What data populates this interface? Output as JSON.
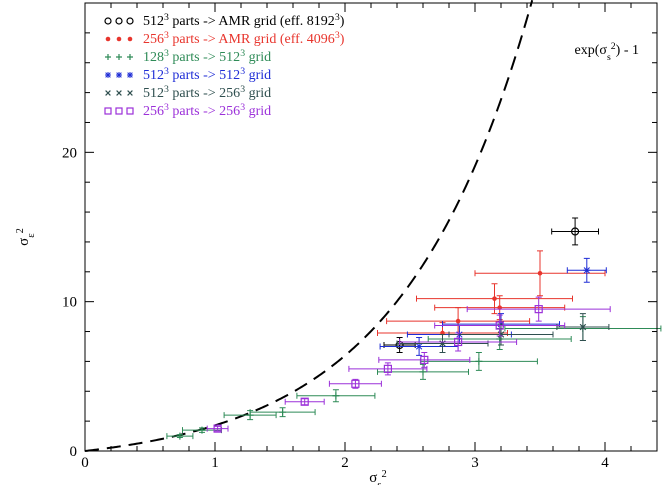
{
  "chart_data": {
    "type": "scatter",
    "title": "",
    "xlabel": "σ_s^2",
    "ylabel": "σ_ε^2",
    "xlim": [
      0,
      4.4
    ],
    "ylim": [
      0,
      30
    ],
    "x_ticks": [
      0,
      1,
      2,
      3,
      4
    ],
    "y_ticks": [
      0,
      10,
      20
    ],
    "grid": false,
    "legend_position": "top-left",
    "curve": {
      "label": "exp(σ_s^2) - 1",
      "style": "dashed",
      "color": "#000000"
    },
    "series": [
      {
        "name": "512^3 parts -> AMR grid (eff. 8192^3)",
        "marker": "circle",
        "color": "#000000",
        "points": [
          {
            "x": 2.42,
            "y": 7.1,
            "xerr": 0.12,
            "yerr": 0.5
          },
          {
            "x": 3.77,
            "y": 14.7,
            "xerr": 0.18,
            "yerr": 0.9
          }
        ]
      },
      {
        "name": "256^3 parts -> AMR grid (eff. 4096^3)",
        "marker": "dot",
        "color": "#e8352d",
        "points": [
          {
            "x": 2.75,
            "y": 7.9,
            "xerr": 0.5,
            "yerr": 0.7
          },
          {
            "x": 2.87,
            "y": 8.7,
            "xerr": 0.55,
            "yerr": 0.9
          },
          {
            "x": 3.15,
            "y": 10.2,
            "xerr": 0.6,
            "yerr": 1.0
          },
          {
            "x": 3.19,
            "y": 9.6,
            "xerr": 0.5,
            "yerr": 0.8
          },
          {
            "x": 3.5,
            "y": 11.9,
            "xerr": 0.5,
            "yerr": 1.5
          }
        ]
      },
      {
        "name": "128^3 parts -> 512^3 grid",
        "marker": "plus",
        "color": "#2e8b57",
        "points": [
          {
            "x": 0.73,
            "y": 1.0,
            "xerr": 0.1,
            "yerr": 0.1
          },
          {
            "x": 0.9,
            "y": 1.4,
            "xerr": 0.15,
            "yerr": 0.15
          },
          {
            "x": 1.27,
            "y": 2.4,
            "xerr": 0.2,
            "yerr": 0.3
          },
          {
            "x": 1.52,
            "y": 2.6,
            "xerr": 0.25,
            "yerr": 0.3
          },
          {
            "x": 1.93,
            "y": 3.7,
            "xerr": 0.3,
            "yerr": 0.4
          },
          {
            "x": 2.6,
            "y": 5.3,
            "xerr": 0.35,
            "yerr": 0.5
          },
          {
            "x": 3.03,
            "y": 6.0,
            "xerr": 0.45,
            "yerr": 0.6
          },
          {
            "x": 3.19,
            "y": 7.5,
            "xerr": 0.55,
            "yerr": 0.7
          },
          {
            "x": 3.83,
            "y": 8.2,
            "xerr": 0.6,
            "yerr": 0.8
          }
        ]
      },
      {
        "name": "512^3 parts -> 512^3 grid",
        "marker": "asterisk",
        "color": "#1f2dd6",
        "points": [
          {
            "x": 2.57,
            "y": 7.0,
            "xerr": 0.3,
            "yerr": 0.6
          },
          {
            "x": 2.88,
            "y": 7.8,
            "xerr": 0.4,
            "yerr": 0.6
          },
          {
            "x": 3.2,
            "y": 8.5,
            "xerr": 0.45,
            "yerr": 0.7
          },
          {
            "x": 3.86,
            "y": 12.1,
            "xerr": 0.15,
            "yerr": 0.8
          }
        ]
      },
      {
        "name": "512^3 parts -> 256^3 grid",
        "marker": "cross",
        "color": "#2f4f4f",
        "points": [
          {
            "x": 2.75,
            "y": 7.2,
            "xerr": 0.35,
            "yerr": 0.6
          },
          {
            "x": 3.2,
            "y": 7.8,
            "xerr": 0.4,
            "yerr": 0.7
          },
          {
            "x": 3.83,
            "y": 8.3,
            "xerr": 0.2,
            "yerr": 0.9
          }
        ]
      },
      {
        "name": "256^3 parts -> 256^3 grid",
        "marker": "square",
        "color": "#9b30d9",
        "points": [
          {
            "x": 1.02,
            "y": 1.5,
            "xerr": 0.08,
            "yerr": 0.15
          },
          {
            "x": 1.69,
            "y": 3.3,
            "xerr": 0.15,
            "yerr": 0.2
          },
          {
            "x": 2.08,
            "y": 4.5,
            "xerr": 0.2,
            "yerr": 0.3
          },
          {
            "x": 2.33,
            "y": 5.5,
            "xerr": 0.3,
            "yerr": 0.4
          },
          {
            "x": 2.61,
            "y": 6.1,
            "xerr": 0.35,
            "yerr": 0.5
          },
          {
            "x": 2.87,
            "y": 7.3,
            "xerr": 0.45,
            "yerr": 0.6
          },
          {
            "x": 3.19,
            "y": 8.4,
            "xerr": 0.5,
            "yerr": 0.7
          },
          {
            "x": 3.49,
            "y": 9.5,
            "xerr": 0.55,
            "yerr": 0.8
          }
        ]
      }
    ]
  }
}
